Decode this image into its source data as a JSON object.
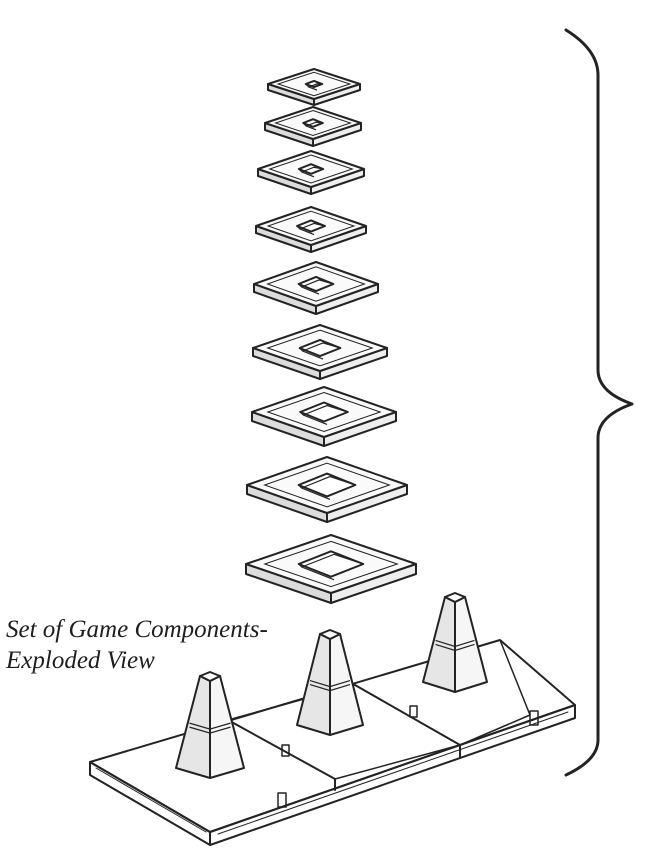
{
  "caption": {
    "line1": "Set of Game Components-",
    "line2": "Exploded View"
  },
  "components": {
    "stacking_plates": 9,
    "base_sections": 3,
    "pegs": 3
  },
  "colors": {
    "ink": "#232323",
    "background": "#ffffff"
  }
}
